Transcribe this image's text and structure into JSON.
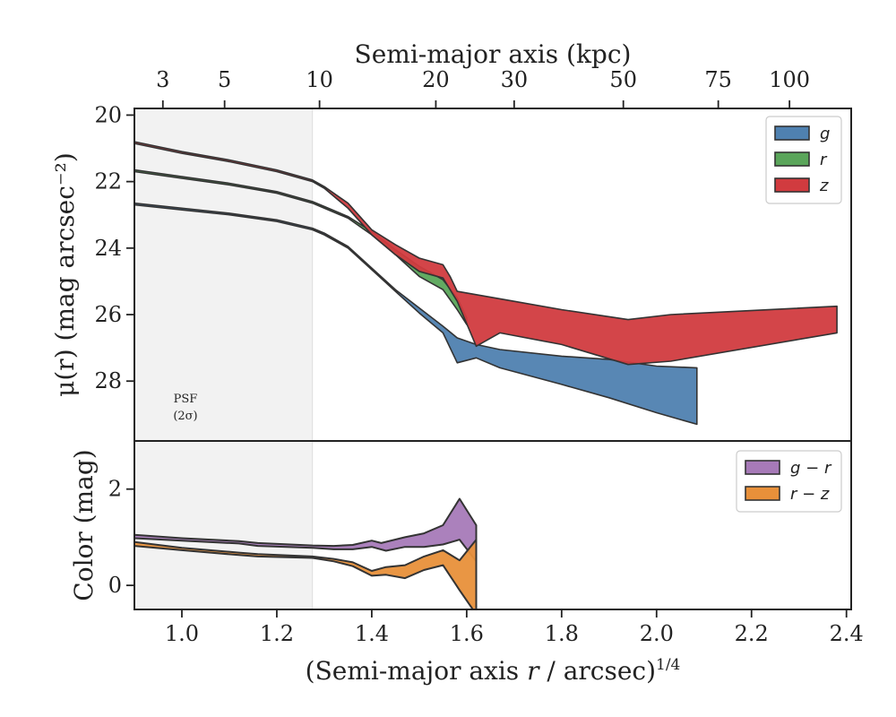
{
  "chart_data": [
    {
      "type": "area",
      "panel": "surface-brightness",
      "ylabel": "μ(r) (mag arcsec⁻²)",
      "top_xlabel": "Semi-major axis (kpc)",
      "top_ticks": [
        {
          "label": "3",
          "x": 0.96
        },
        {
          "label": "5",
          "x": 1.09
        },
        {
          "label": "10",
          "x": 1.29
        },
        {
          "label": "20",
          "x": 1.535
        },
        {
          "label": "30",
          "x": 1.7
        },
        {
          "label": "50",
          "x": 1.93
        },
        {
          "label": "75",
          "x": 2.13
        },
        {
          "label": "100",
          "x": 2.28
        }
      ],
      "xlim": [
        0.9,
        2.41
      ],
      "ylim": [
        29.8,
        19.8
      ],
      "y_inverted": true,
      "yticks": [
        20,
        22,
        24,
        26,
        28
      ],
      "psf_label_line1": "PSF",
      "psf_label_line2": "(2σ)",
      "psf_region": [
        0.9,
        1.275
      ],
      "legend_position": "top-right",
      "series": [
        {
          "name": "g",
          "color": "#4f81b0",
          "upper": [
            [
              0.9,
              22.65
            ],
            [
              1.0,
              22.8
            ],
            [
              1.1,
              22.95
            ],
            [
              1.2,
              23.15
            ],
            [
              1.275,
              23.4
            ],
            [
              1.3,
              23.55
            ],
            [
              1.35,
              23.95
            ],
            [
              1.4,
              24.6
            ],
            [
              1.45,
              25.25
            ],
            [
              1.5,
              25.8
            ],
            [
              1.55,
              26.35
            ],
            [
              1.58,
              26.7
            ],
            [
              1.62,
              26.9
            ],
            [
              1.67,
              27.05
            ],
            [
              1.8,
              27.25
            ],
            [
              1.9,
              27.35
            ],
            [
              2.0,
              27.55
            ],
            [
              2.085,
              27.6
            ]
          ],
          "lower": [
            [
              0.9,
              22.7
            ],
            [
              1.0,
              22.85
            ],
            [
              1.1,
              23.0
            ],
            [
              1.2,
              23.2
            ],
            [
              1.275,
              23.45
            ],
            [
              1.3,
              23.6
            ],
            [
              1.35,
              24.0
            ],
            [
              1.4,
              24.65
            ],
            [
              1.45,
              25.3
            ],
            [
              1.5,
              25.95
            ],
            [
              1.55,
              26.55
            ],
            [
              1.58,
              27.45
            ],
            [
              1.62,
              27.3
            ],
            [
              1.67,
              27.6
            ],
            [
              1.8,
              28.1
            ],
            [
              1.9,
              28.5
            ],
            [
              2.0,
              28.95
            ],
            [
              2.085,
              29.3
            ]
          ]
        },
        {
          "name": "r",
          "color": "#5aa55a",
          "upper": [
            [
              0.9,
              21.65
            ],
            [
              1.0,
              21.85
            ],
            [
              1.1,
              22.05
            ],
            [
              1.2,
              22.3
            ],
            [
              1.275,
              22.6
            ],
            [
              1.3,
              22.75
            ],
            [
              1.35,
              23.05
            ],
            [
              1.4,
              23.5
            ],
            [
              1.45,
              24.05
            ],
            [
              1.5,
              24.55
            ],
            [
              1.55,
              24.95
            ],
            [
              1.58,
              25.5
            ],
            [
              1.6,
              26.1
            ]
          ],
          "lower": [
            [
              0.9,
              21.7
            ],
            [
              1.0,
              21.9
            ],
            [
              1.1,
              22.1
            ],
            [
              1.2,
              22.35
            ],
            [
              1.275,
              22.65
            ],
            [
              1.3,
              22.8
            ],
            [
              1.35,
              23.1
            ],
            [
              1.4,
              23.6
            ],
            [
              1.45,
              24.2
            ],
            [
              1.5,
              24.85
            ],
            [
              1.55,
              25.25
            ],
            [
              1.58,
              25.85
            ],
            [
              1.6,
              26.3
            ]
          ]
        },
        {
          "name": "z",
          "color": "#d13b3f",
          "upper": [
            [
              0.9,
              20.8
            ],
            [
              1.0,
              21.1
            ],
            [
              1.1,
              21.35
            ],
            [
              1.2,
              21.65
            ],
            [
              1.275,
              21.95
            ],
            [
              1.3,
              22.15
            ],
            [
              1.35,
              22.65
            ],
            [
              1.4,
              23.45
            ],
            [
              1.45,
              23.9
            ],
            [
              1.5,
              24.3
            ],
            [
              1.55,
              24.5
            ],
            [
              1.565,
              24.85
            ],
            [
              1.58,
              25.3
            ],
            [
              1.7,
              25.6
            ],
            [
              1.8,
              25.85
            ],
            [
              1.94,
              26.15
            ],
            [
              2.03,
              26.0
            ],
            [
              2.38,
              25.75
            ]
          ],
          "lower": [
            [
              0.9,
              20.85
            ],
            [
              1.0,
              21.15
            ],
            [
              1.1,
              21.4
            ],
            [
              1.2,
              21.7
            ],
            [
              1.275,
              22.0
            ],
            [
              1.3,
              22.2
            ],
            [
              1.35,
              22.8
            ],
            [
              1.4,
              23.6
            ],
            [
              1.45,
              24.2
            ],
            [
              1.5,
              24.7
            ],
            [
              1.55,
              24.9
            ],
            [
              1.58,
              25.6
            ],
            [
              1.62,
              26.95
            ],
            [
              1.67,
              26.55
            ],
            [
              1.8,
              26.9
            ],
            [
              1.94,
              27.5
            ],
            [
              2.03,
              27.4
            ],
            [
              2.38,
              26.55
            ]
          ]
        }
      ]
    },
    {
      "type": "area",
      "panel": "color",
      "ylabel": "Color (mag)",
      "xlabel": "(Semi-major axis r / arcsec)^1/4",
      "xlim": [
        0.9,
        2.41
      ],
      "ylim": [
        -0.5,
        3.0
      ],
      "yticks": [
        0,
        2
      ],
      "xticks": [
        1.0,
        1.2,
        1.4,
        1.6,
        1.8,
        2.0,
        2.2,
        2.4
      ],
      "xtick_labels": [
        "1.0",
        "1.2",
        "1.4",
        "1.6",
        "1.8",
        "2.0",
        "2.2",
        "2.4"
      ],
      "legend_position": "top-right",
      "series": [
        {
          "name": "g − r",
          "color": "#a77ab8",
          "upper": [
            [
              0.9,
              1.05
            ],
            [
              1.0,
              0.98
            ],
            [
              1.12,
              0.92
            ],
            [
              1.16,
              0.88
            ],
            [
              1.275,
              0.83
            ],
            [
              1.32,
              0.82
            ],
            [
              1.36,
              0.84
            ],
            [
              1.4,
              0.93
            ],
            [
              1.42,
              0.88
            ],
            [
              1.47,
              1.0
            ],
            [
              1.51,
              1.08
            ],
            [
              1.55,
              1.25
            ],
            [
              1.585,
              1.8
            ],
            [
              1.62,
              1.25
            ]
          ],
          "lower": [
            [
              0.9,
              0.98
            ],
            [
              1.0,
              0.93
            ],
            [
              1.12,
              0.87
            ],
            [
              1.16,
              0.82
            ],
            [
              1.275,
              0.78
            ],
            [
              1.32,
              0.75
            ],
            [
              1.36,
              0.75
            ],
            [
              1.4,
              0.8
            ],
            [
              1.43,
              0.72
            ],
            [
              1.47,
              0.8
            ],
            [
              1.51,
              0.8
            ],
            [
              1.55,
              0.85
            ],
            [
              1.585,
              0.95
            ],
            [
              1.62,
              0.5
            ]
          ]
        },
        {
          "name": "r − z",
          "color": "#e8903a",
          "upper": [
            [
              0.9,
              0.9
            ],
            [
              1.0,
              0.78
            ],
            [
              1.12,
              0.68
            ],
            [
              1.16,
              0.65
            ],
            [
              1.275,
              0.6
            ],
            [
              1.32,
              0.55
            ],
            [
              1.36,
              0.48
            ],
            [
              1.4,
              0.3
            ],
            [
              1.43,
              0.38
            ],
            [
              1.47,
              0.42
            ],
            [
              1.51,
              0.6
            ],
            [
              1.55,
              0.73
            ],
            [
              1.585,
              0.52
            ],
            [
              1.62,
              0.95
            ]
          ],
          "lower": [
            [
              0.9,
              0.82
            ],
            [
              1.0,
              0.73
            ],
            [
              1.12,
              0.63
            ],
            [
              1.16,
              0.6
            ],
            [
              1.275,
              0.57
            ],
            [
              1.32,
              0.5
            ],
            [
              1.36,
              0.4
            ],
            [
              1.4,
              0.2
            ],
            [
              1.43,
              0.22
            ],
            [
              1.47,
              0.15
            ],
            [
              1.51,
              0.32
            ],
            [
              1.55,
              0.42
            ],
            [
              1.585,
              -0.1
            ],
            [
              1.62,
              -0.6
            ]
          ]
        }
      ]
    }
  ]
}
